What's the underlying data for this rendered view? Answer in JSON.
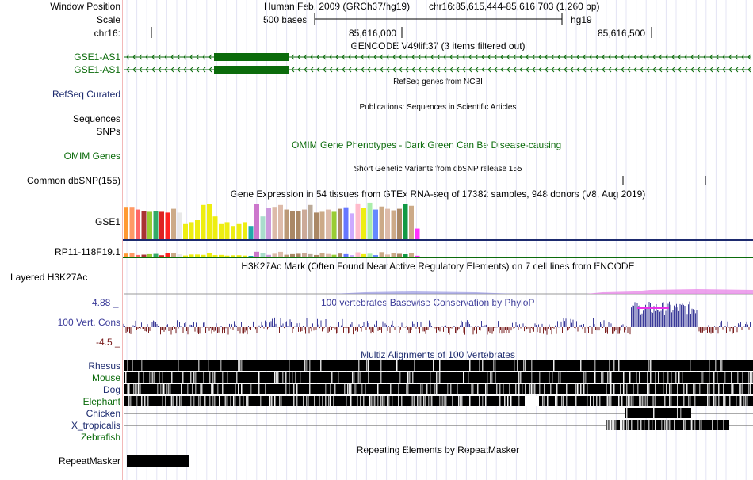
{
  "header": {
    "window_position_label": "Window Position",
    "scale_label": "Scale",
    "chrom_label": "chr16:",
    "assembly_text": "Human Feb. 2009 (GRCh37/hg19)",
    "position_text": "chr16:85,615,444-85,616,703 (1,260 bp)",
    "scale_text": "500 bases",
    "scale_db": "hg19",
    "tick1": "85,616,000",
    "tick2": "85,616,500"
  },
  "tracks": {
    "gencode_title": "GENCODE V49lift37 (3 items filtered out)",
    "gencode_items": [
      "GSE1-AS1",
      "GSE1-AS1"
    ],
    "refseq_title": "RefSeq genes from NCBI",
    "refseq_label": "RefSeq Curated",
    "pubs_title": "Publications: Sequences in Scientific Articles",
    "sequences_label": "Sequences",
    "snps_label": "SNPs",
    "omim_label": "OMIM Genes",
    "omim_title": "OMIM Gene Phenotypes - Dark Green Can Be Disease-causing",
    "dbsnp_title": "Short Genetic Variants from dbSNP release 155",
    "dbsnp_label": "Common dbSNP(155)",
    "gtex_title": "Gene Expression in 54 tissues from GTEx RNA-seq of 17382 samples, 948 donors (V8, Aug 2019)",
    "gtex_gene1": "GSE1",
    "gtex_gene2": "RP11-118F19.1",
    "h3k27ac_title": "H3K27Ac Mark (Often Found Near Active Regulatory Elements) on 7 cell lines from ENCODE",
    "h3k27ac_label": "Layered H3K27Ac",
    "phylop_title": "100 vertebrates Basewise Conservation by PhyloP",
    "phylop_label": "100 Vert. Cons",
    "phylop_max": "4.88 _",
    "phylop_min": "-4.5 _",
    "multiz_title": "Multiz Alignments of 100 Vertebrates",
    "species": [
      "Rhesus",
      "Mouse",
      "Dog",
      "Elephant",
      "Chicken",
      "X_tropicalis",
      "Zebrafish"
    ],
    "repeat_title": "Repeating Elements by RepeatMasker",
    "repeat_label": "RepeatMasker"
  },
  "colors": {
    "gencode": "#0b6b0b",
    "navy_label": "#1c2a6e",
    "phylop_pos": "#3b3b99",
    "phylop_neg": "#7a1f1f",
    "h3k27ac": "#e88be8"
  },
  "gtex_colors": [
    "#ff9933",
    "#ff9966",
    "#ff6666",
    "#aa3333",
    "#99cc33",
    "#33aa66",
    "#dd2222",
    "#ff2222",
    "#ccaa88",
    "#e8e8e8",
    "#eeee11",
    "#eeee11",
    "#eeee11",
    "#eeee11",
    "#eeee11",
    "#eeee11",
    "#eeee11",
    "#eeee11",
    "#eeee11",
    "#eeee11",
    "#eeee11",
    "#22aaaa",
    "#cc77cc",
    "#aaddcc",
    "#cc99dd",
    "#ddbbaa",
    "#ddbbaa",
    "#bb9977",
    "#aa8866",
    "#aa8866",
    "#ccaa99",
    "#bbaa99",
    "#aa8866",
    "#ccaa88",
    "#ddbbaa",
    "#99cc33",
    "#aa8866",
    "#6677ff",
    "#ccaaff",
    "#ffbbcc",
    "#eeee11",
    "#aaeeaa",
    "#6688ff",
    "#ccaa88",
    "#ddbbaa",
    "#ccaa88",
    "#aa8866",
    "#119944",
    "#ccaa88",
    "#ff33ff"
  ],
  "gtex_values": [
    0.85,
    0.85,
    0.78,
    0.75,
    0.72,
    0.75,
    0.72,
    0.7,
    0.8,
    0.7,
    0.4,
    0.45,
    0.5,
    0.9,
    0.92,
    0.6,
    0.4,
    0.45,
    0.35,
    0.4,
    0.45,
    0.35,
    0.92,
    0.6,
    0.82,
    0.85,
    0.9,
    0.78,
    0.75,
    0.75,
    0.78,
    0.9,
    0.7,
    0.72,
    0.78,
    0.72,
    0.8,
    0.84,
    0.68,
    0.94,
    0.82,
    0.96,
    0.78,
    0.86,
    0.8,
    0.76,
    0.8,
    0.92,
    0.88,
    0.28
  ]
}
